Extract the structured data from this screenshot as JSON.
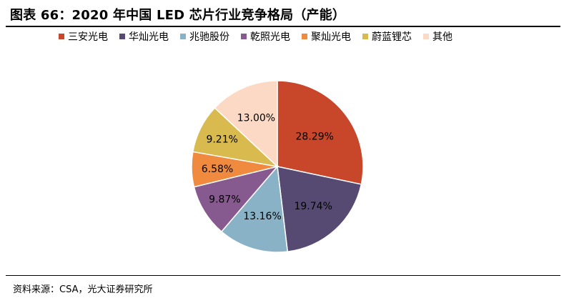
{
  "title": "图表 66：2020 年中国 LED 芯片行业竞争格局（产能）",
  "source": "资料来源：CSA，光大证券研究所",
  "chart_data": {
    "type": "pie",
    "start_angle_deg": 0,
    "direction": "clockwise",
    "legend_position": "top",
    "slices": [
      {
        "label": "三安光电",
        "value": 28.29,
        "value_label": "28.29%",
        "color": "#c8462a"
      },
      {
        "label": "华灿光电",
        "value": 19.74,
        "value_label": "19.74%",
        "color": "#564a73"
      },
      {
        "label": "兆驰股份",
        "value": 13.16,
        "value_label": "13.16%",
        "color": "#8ab2c6"
      },
      {
        "label": "乾照光电",
        "value": 9.87,
        "value_label": "9.87%",
        "color": "#86598f"
      },
      {
        "label": "聚灿光电",
        "value": 6.58,
        "value_label": "6.58%",
        "color": "#ef8a3e"
      },
      {
        "label": "蔚蓝锂芯",
        "value": 9.21,
        "value_label": "9.21%",
        "color": "#d8ba4e"
      },
      {
        "label": "其他",
        "value": 13.0,
        "value_label": "13.00%",
        "color": "#fbd9c4"
      }
    ]
  }
}
